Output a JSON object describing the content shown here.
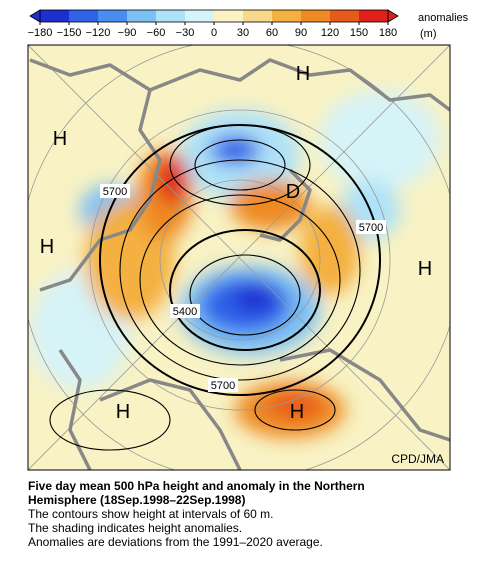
{
  "colorbar": {
    "labels": [
      "−180",
      "−150",
      "−120",
      "−90",
      "−60",
      "−30",
      "0",
      "30",
      "60",
      "90",
      "120",
      "150",
      "180"
    ],
    "colors": [
      "#1e2fd0",
      "#2f62e8",
      "#4a8cf0",
      "#7cc0f5",
      "#aee2f8",
      "#d6f3f8",
      "#f8f2c4",
      "#f8d88a",
      "#f4b040",
      "#ee8a24",
      "#e85a1c",
      "#e0201a"
    ],
    "title": "anomalies",
    "unit": "(m)"
  },
  "map": {
    "highs": [
      "H",
      "H",
      "H",
      "H",
      "H",
      "H"
    ],
    "low": "D",
    "contour_labels": [
      "5700",
      "5700",
      "5400",
      "5700"
    ],
    "credit": "CPD/JMA"
  },
  "caption": {
    "title_line1": "Five day mean 500 hPa height and anomaly in the Northern",
    "title_line2": "Hemisphere (18Sep.1998–22Sep.1998)",
    "lines": [
      "The contours show height at intervals of 60 m.",
      "The shading indicates height anomalies.",
      "Anomalies are deviations from the 1991–2020 average."
    ]
  }
}
